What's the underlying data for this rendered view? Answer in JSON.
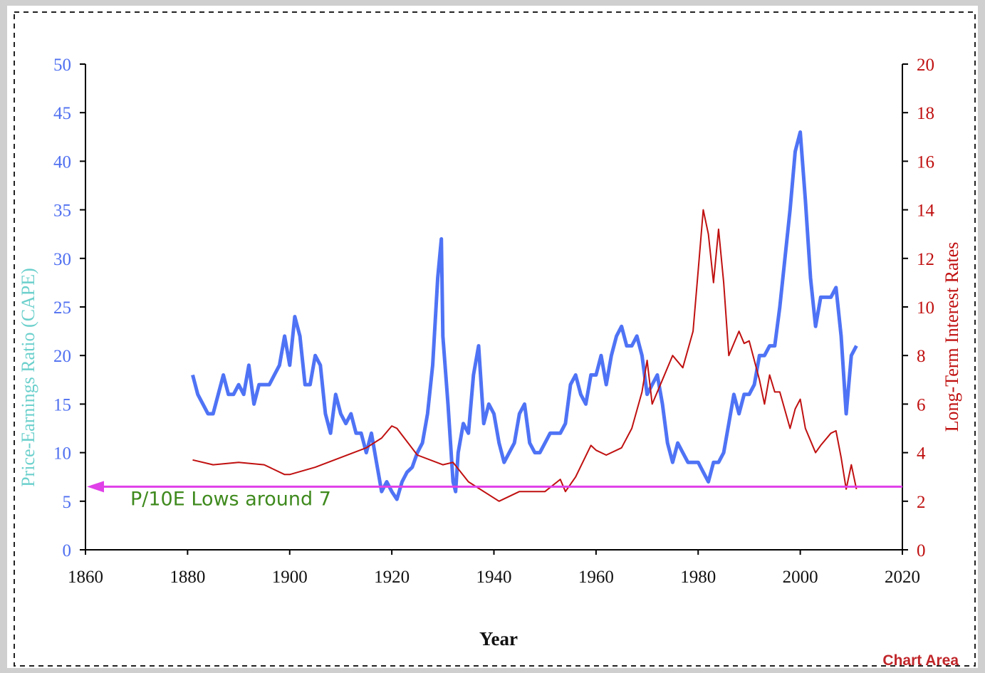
{
  "chart_data": {
    "type": "line",
    "xlabel": "Year",
    "ylabel_left": "Price-Earnings Ratio (CAPE)",
    "ylabel_right": "Long-Term Interest Rates",
    "xlim": [
      1860,
      2020
    ],
    "ylim_left": [
      0,
      50
    ],
    "ylim_right": [
      0,
      20
    ],
    "x_ticks": [
      "1860",
      "1880",
      "1900",
      "1920",
      "1940",
      "1960",
      "1980",
      "2000",
      "2020"
    ],
    "y_ticks_left": [
      "0",
      "5",
      "10",
      "15",
      "20",
      "25",
      "30",
      "35",
      "40",
      "45",
      "50"
    ],
    "y_ticks_right": [
      "0",
      "2",
      "4",
      "6",
      "8",
      "10",
      "12",
      "14",
      "16",
      "18",
      "20"
    ],
    "grid": false,
    "series": [
      {
        "name": "CAPE",
        "axis": "left",
        "color": "#4f73f5",
        "x": [
          1881,
          1882,
          1883,
          1884,
          1885,
          1886,
          1887,
          1888,
          1889,
          1890,
          1891,
          1892,
          1893,
          1894,
          1895,
          1896,
          1897,
          1898,
          1899,
          1900,
          1901,
          1902,
          1903,
          1904,
          1905,
          1906,
          1907,
          1908,
          1909,
          1910,
          1911,
          1912,
          1913,
          1914,
          1915,
          1916,
          1917,
          1918,
          1919,
          1920,
          1921,
          1922,
          1923,
          1924,
          1925,
          1926,
          1927,
          1928,
          1929,
          1929.7,
          1930,
          1931,
          1932,
          1932.5,
          1933,
          1934,
          1935,
          1936,
          1937,
          1938,
          1939,
          1940,
          1941,
          1942,
          1943,
          1944,
          1945,
          1946,
          1947,
          1948,
          1949,
          1950,
          1951,
          1952,
          1953,
          1954,
          1955,
          1956,
          1957,
          1958,
          1959,
          1960,
          1961,
          1962,
          1963,
          1964,
          1965,
          1966,
          1967,
          1968,
          1969,
          1970,
          1971,
          1972,
          1973,
          1974,
          1975,
          1976,
          1977,
          1978,
          1979,
          1980,
          1981,
          1982,
          1983,
          1984,
          1985,
          1986,
          1987,
          1988,
          1989,
          1990,
          1991,
          1992,
          1993,
          1994,
          1995,
          1996,
          1997,
          1998,
          1999,
          2000,
          2001,
          2002,
          2003,
          2004,
          2005,
          2006,
          2007,
          2008,
          2009,
          2010,
          2011
        ],
        "y": [
          18,
          16,
          15,
          14,
          14,
          16,
          18,
          16,
          16,
          17,
          16,
          19,
          15,
          17,
          17,
          17,
          18,
          19,
          22,
          19,
          24,
          22,
          17,
          17,
          20,
          19,
          14,
          12,
          16,
          14,
          13,
          14,
          12,
          12,
          10,
          12,
          9,
          6,
          7,
          6,
          5.2,
          7,
          8,
          8.5,
          10,
          11,
          14,
          19,
          28,
          32,
          22,
          15,
          7,
          6,
          10,
          13,
          12,
          18,
          21,
          13,
          15,
          14,
          11,
          9,
          10,
          11,
          14,
          15,
          11,
          10,
          10,
          11,
          12,
          12,
          12,
          13,
          17,
          18,
          16,
          15,
          18,
          18,
          20,
          17,
          20,
          22,
          23,
          21,
          21,
          22,
          20,
          16,
          17,
          18,
          15,
          11,
          9,
          11,
          10,
          9,
          9,
          9,
          8,
          7,
          9,
          9,
          10,
          13,
          16,
          14,
          16,
          16,
          17,
          20,
          20,
          21,
          21,
          25,
          30,
          35,
          41,
          43,
          36,
          28,
          23,
          26,
          26,
          26,
          27,
          22,
          14,
          20,
          21
        ]
      },
      {
        "name": "Long-Term Interest Rates",
        "axis": "right",
        "color": "#c01010",
        "x": [
          1881,
          1885,
          1890,
          1895,
          1899,
          1900,
          1905,
          1910,
          1915,
          1918,
          1920,
          1921,
          1925,
          1930,
          1932,
          1935,
          1941,
          1945,
          1950,
          1953,
          1954,
          1956,
          1959,
          1960,
          1962,
          1965,
          1967,
          1969,
          1970,
          1971,
          1973,
          1975,
          1977,
          1979,
          1980,
          1981,
          1982,
          1983,
          1984,
          1985,
          1986,
          1987,
          1988,
          1989,
          1990,
          1992,
          1993,
          1994,
          1995,
          1996,
          1998,
          1999,
          2000,
          2001,
          2003,
          2004,
          2006,
          2007,
          2008,
          2009,
          2010,
          2011
        ],
        "y": [
          3.7,
          3.5,
          3.6,
          3.5,
          3.1,
          3.1,
          3.4,
          3.8,
          4.2,
          4.6,
          5.1,
          5.0,
          3.9,
          3.5,
          3.6,
          2.8,
          2.0,
          2.4,
          2.4,
          2.9,
          2.4,
          3.0,
          4.3,
          4.1,
          3.9,
          4.2,
          5.0,
          6.5,
          7.8,
          6.0,
          7.0,
          8.0,
          7.5,
          9.0,
          11.5,
          14.0,
          13.0,
          11.0,
          13.2,
          11.0,
          8.0,
          8.5,
          9.0,
          8.5,
          8.6,
          7.0,
          6.0,
          7.2,
          6.5,
          6.5,
          5.0,
          5.8,
          6.2,
          5.0,
          4.0,
          4.3,
          4.8,
          4.9,
          3.8,
          2.5,
          3.5,
          2.5
        ]
      }
    ],
    "annotations": [
      {
        "text": "P/10E Lows around 7",
        "value": 6.5,
        "axis": "left",
        "color": "#e040e8",
        "text_color": "#3f8a1e"
      }
    ],
    "frame_label": "Chart Area"
  }
}
